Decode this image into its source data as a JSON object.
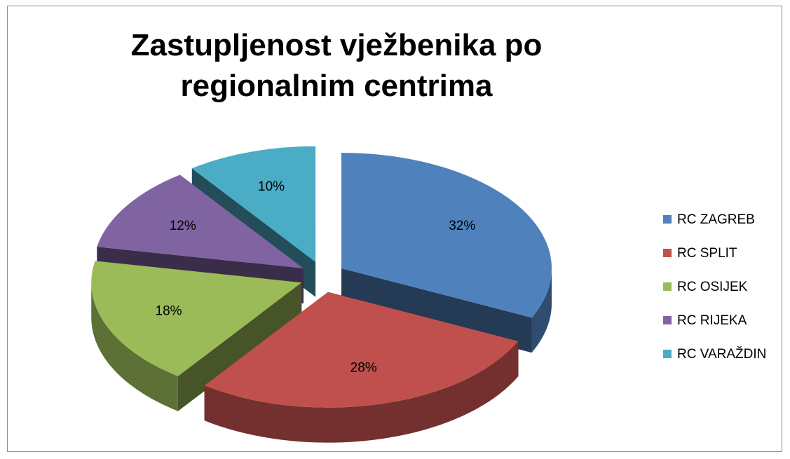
{
  "chart_data": {
    "type": "pie3d",
    "title": "Zastupljenost vježbenika po regionalnim centrima",
    "categories": [
      "RC ZAGREB",
      "RC SPLIT",
      "RC OSIJEK",
      "RC RIJEKA",
      "RC VARAŽDIN"
    ],
    "values": [
      32,
      28,
      18,
      12,
      10
    ],
    "value_labels": [
      "32%",
      "28%",
      "18%",
      "12%",
      "10%"
    ],
    "colors": [
      "#4f81bd",
      "#c0504d",
      "#9bbb59",
      "#8064a2",
      "#4bacc6"
    ],
    "legend": "right"
  }
}
